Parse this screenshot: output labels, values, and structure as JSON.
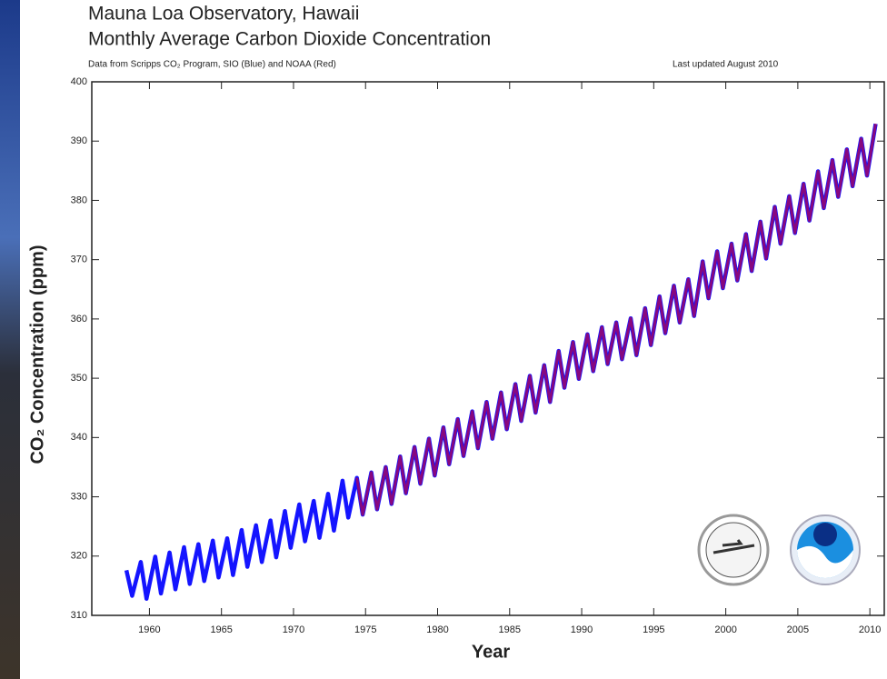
{
  "chart_data": {
    "type": "line",
    "title": "Mauna Loa Observatory, Hawaii",
    "subtitle": "Monthly Average Carbon Dioxide Concentration",
    "source": "Data from Scripps CO₂ Program, SIO (Blue) and NOAA (Red)",
    "updated": "Last updated August 2010",
    "x_label": "Year",
    "y_label": "CO₂ Concentration (ppm)",
    "xlim": [
      1956,
      2011
    ],
    "xticks": [
      1960,
      1965,
      1970,
      1975,
      1980,
      1985,
      1990,
      1995,
      2000,
      2005,
      2010
    ],
    "ylim": [
      310,
      400
    ],
    "yticks": [
      310,
      320,
      330,
      340,
      350,
      360,
      370,
      380,
      390,
      400
    ],
    "series": [
      {
        "name": "SIO",
        "color": "#1414ff",
        "x": [
          1958.4,
          1958.8,
          1959.4,
          1959.8,
          1960.4,
          1960.8,
          1961.4,
          1961.8,
          1962.4,
          1962.8,
          1963.4,
          1963.8,
          1964.4,
          1964.8,
          1965.4,
          1965.8,
          1966.4,
          1966.8,
          1967.4,
          1967.8,
          1968.4,
          1968.8,
          1969.4,
          1969.8,
          1970.4,
          1970.8,
          1971.4,
          1971.8,
          1972.4,
          1972.8,
          1973.4,
          1973.8,
          1974.4,
          1974.8,
          1975.4,
          1975.8,
          1976.4,
          1976.8,
          1977.4,
          1977.8,
          1978.4,
          1978.8,
          1979.4,
          1979.8,
          1980.4,
          1980.8,
          1981.4,
          1981.8,
          1982.4,
          1982.8,
          1983.4,
          1983.8,
          1984.4,
          1984.8,
          1985.4,
          1985.8,
          1986.4,
          1986.8,
          1987.4,
          1987.8,
          1988.4,
          1988.8,
          1989.4,
          1989.8,
          1990.4,
          1990.8,
          1991.4,
          1991.8,
          1992.4,
          1992.8,
          1993.4,
          1993.8,
          1994.4,
          1994.8,
          1995.4,
          1995.8,
          1996.4,
          1996.8,
          1997.4,
          1997.8,
          1998.4,
          1998.8,
          1999.4,
          1999.8,
          2000.4,
          2000.8,
          2001.4,
          2001.8,
          2002.4,
          2002.8,
          2003.4,
          2003.8,
          2004.4,
          2004.8,
          2005.4,
          2005.8,
          2006.4,
          2006.8,
          2007.4,
          2007.8,
          2008.4,
          2008.8,
          2009.4,
          2009.8,
          2010.4
        ],
        "values": [
          317.6,
          313.3,
          319.0,
          312.8,
          319.9,
          313.7,
          320.6,
          314.4,
          321.5,
          315.3,
          322.0,
          315.8,
          322.6,
          316.4,
          323.0,
          316.8,
          324.4,
          318.2,
          325.2,
          319.0,
          326.0,
          319.8,
          327.6,
          321.4,
          328.7,
          322.5,
          329.3,
          323.1,
          330.5,
          324.3,
          332.7,
          326.5,
          333.2,
          327.0,
          334.1,
          327.9,
          335.0,
          328.8,
          336.8,
          330.6,
          338.4,
          332.2,
          339.8,
          333.6,
          341.7,
          335.5,
          343.1,
          336.9,
          344.4,
          338.2,
          346.0,
          339.8,
          347.6,
          341.4,
          349.0,
          342.8,
          350.4,
          344.2,
          352.2,
          346.0,
          354.6,
          348.4,
          356.1,
          349.9,
          357.4,
          351.2,
          358.6,
          352.4,
          359.4,
          353.2,
          360.1,
          353.9,
          361.8,
          355.6,
          363.8,
          357.6,
          365.6,
          359.4,
          366.7,
          360.5,
          369.7,
          363.5,
          371.4,
          365.2,
          372.7,
          366.5,
          374.3,
          368.1,
          376.4,
          370.2,
          378.9,
          372.7,
          380.7,
          374.5,
          382.8,
          376.6,
          384.9,
          378.7,
          386.8,
          380.6,
          388.6,
          382.4,
          390.4,
          384.2,
          392.9
        ]
      },
      {
        "name": "NOAA",
        "color": "#d4002a",
        "x": [
          1974.4,
          1974.8,
          1975.4,
          1975.8,
          1976.4,
          1976.8,
          1977.4,
          1977.8,
          1978.4,
          1978.8,
          1979.4,
          1979.8,
          1980.4,
          1980.8,
          1981.4,
          1981.8,
          1982.4,
          1982.8,
          1983.4,
          1983.8,
          1984.4,
          1984.8,
          1985.4,
          1985.8,
          1986.4,
          1986.8,
          1987.4,
          1987.8,
          1988.4,
          1988.8,
          1989.4,
          1989.8,
          1990.4,
          1990.8,
          1991.4,
          1991.8,
          1992.4,
          1992.8,
          1993.4,
          1993.8,
          1994.4,
          1994.8,
          1995.4,
          1995.8,
          1996.4,
          1996.8,
          1997.4,
          1997.8,
          1998.4,
          1998.8,
          1999.4,
          1999.8,
          2000.4,
          2000.8,
          2001.4,
          2001.8,
          2002.4,
          2002.8,
          2003.4,
          2003.8,
          2004.4,
          2004.8,
          2005.4,
          2005.8,
          2006.4,
          2006.8,
          2007.4,
          2007.8,
          2008.4,
          2008.8,
          2009.4,
          2009.8,
          2010.4
        ],
        "values": [
          333.2,
          327.0,
          334.1,
          327.9,
          335.0,
          328.8,
          336.8,
          330.6,
          338.4,
          332.2,
          339.8,
          333.6,
          341.7,
          335.5,
          343.1,
          336.9,
          344.4,
          338.2,
          346.0,
          339.8,
          347.6,
          341.4,
          349.0,
          342.8,
          350.4,
          344.2,
          352.2,
          346.0,
          354.6,
          348.4,
          356.1,
          349.9,
          357.4,
          351.2,
          358.6,
          352.4,
          359.4,
          353.2,
          360.1,
          353.9,
          361.8,
          355.6,
          363.8,
          357.6,
          365.6,
          359.4,
          366.7,
          360.5,
          369.7,
          363.5,
          371.4,
          365.2,
          372.7,
          366.5,
          374.3,
          368.1,
          376.4,
          370.2,
          378.9,
          372.7,
          380.7,
          374.5,
          382.8,
          376.6,
          384.9,
          378.7,
          386.8,
          380.6,
          388.6,
          382.4,
          390.4,
          384.2,
          392.9
        ]
      }
    ]
  }
}
